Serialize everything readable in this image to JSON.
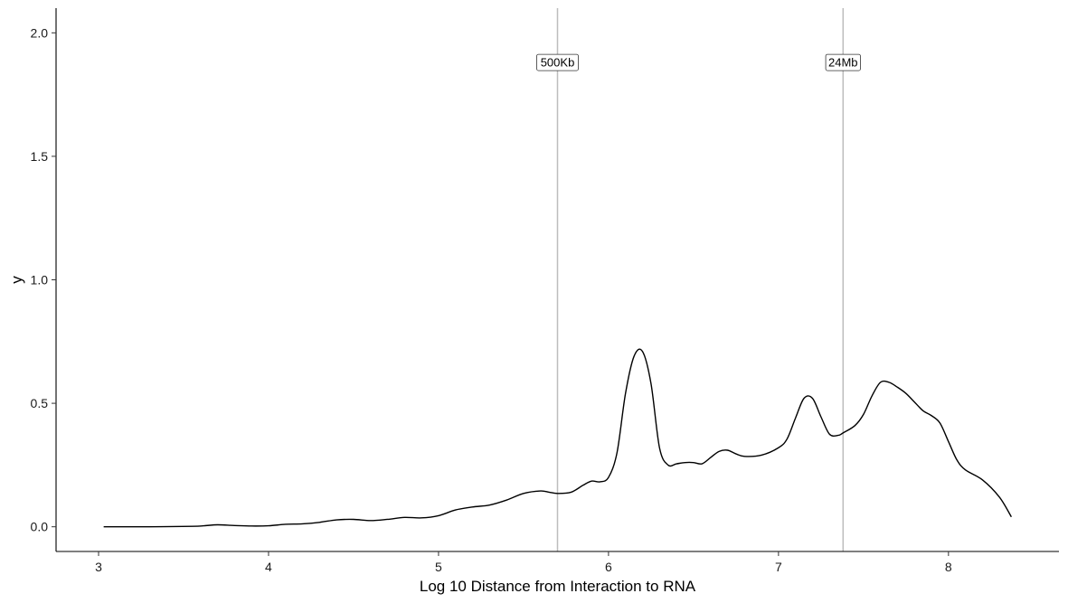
{
  "chart_data": {
    "type": "line",
    "title": "",
    "xlabel": "Log 10 Distance from Interaction to RNA",
    "ylabel": "y",
    "xlim": [
      2.75,
      8.65
    ],
    "ylim": [
      -0.1,
      2.1
    ],
    "x_ticks": [
      3,
      4,
      5,
      6,
      7,
      8
    ],
    "x_tick_labels": [
      "3",
      "4",
      "5",
      "6",
      "7",
      "8"
    ],
    "y_ticks": [
      0.0,
      0.5,
      1.0,
      1.5,
      2.0
    ],
    "y_tick_labels": [
      "0.0",
      "0.5",
      "1.0",
      "1.5",
      "2.0"
    ],
    "grid": false,
    "series": [
      {
        "color": "#000000",
        "x": [
          3.03,
          3.3,
          3.55,
          3.62,
          3.7,
          3.8,
          3.9,
          4.0,
          4.1,
          4.2,
          4.3,
          4.4,
          4.5,
          4.6,
          4.7,
          4.8,
          4.9,
          5.0,
          5.1,
          5.2,
          5.3,
          5.4,
          5.5,
          5.6,
          5.65,
          5.7,
          5.78,
          5.85,
          5.9,
          5.95,
          6.0,
          6.05,
          6.1,
          6.15,
          6.2,
          6.25,
          6.3,
          6.35,
          6.4,
          6.45,
          6.5,
          6.55,
          6.6,
          6.65,
          6.7,
          6.75,
          6.8,
          6.9,
          7.0,
          7.05,
          7.1,
          7.15,
          7.2,
          7.25,
          7.3,
          7.35,
          7.38,
          7.45,
          7.5,
          7.55,
          7.6,
          7.65,
          7.7,
          7.75,
          7.8,
          7.85,
          7.9,
          7.95,
          8.0,
          8.05,
          8.1,
          8.2,
          8.3,
          8.37
        ],
        "y": [
          0.0,
          0.0,
          0.002,
          0.004,
          0.008,
          0.005,
          0.003,
          0.004,
          0.01,
          0.012,
          0.018,
          0.028,
          0.03,
          0.025,
          0.03,
          0.038,
          0.036,
          0.045,
          0.068,
          0.08,
          0.088,
          0.108,
          0.135,
          0.145,
          0.14,
          0.135,
          0.14,
          0.168,
          0.185,
          0.182,
          0.2,
          0.3,
          0.54,
          0.69,
          0.71,
          0.58,
          0.32,
          0.25,
          0.255,
          0.26,
          0.26,
          0.255,
          0.28,
          0.305,
          0.31,
          0.295,
          0.285,
          0.29,
          0.32,
          0.355,
          0.44,
          0.52,
          0.52,
          0.445,
          0.375,
          0.37,
          0.38,
          0.41,
          0.455,
          0.53,
          0.585,
          0.585,
          0.565,
          0.54,
          0.505,
          0.47,
          0.45,
          0.42,
          0.345,
          0.27,
          0.23,
          0.19,
          0.12,
          0.04
        ]
      }
    ],
    "vlines": [
      {
        "x": 5.7,
        "label": "500Kb",
        "label_y": 1.88,
        "color": "#bdbdbd"
      },
      {
        "x": 7.38,
        "label": "24Mb",
        "label_y": 1.88,
        "color": "#bdbdbd"
      }
    ]
  }
}
